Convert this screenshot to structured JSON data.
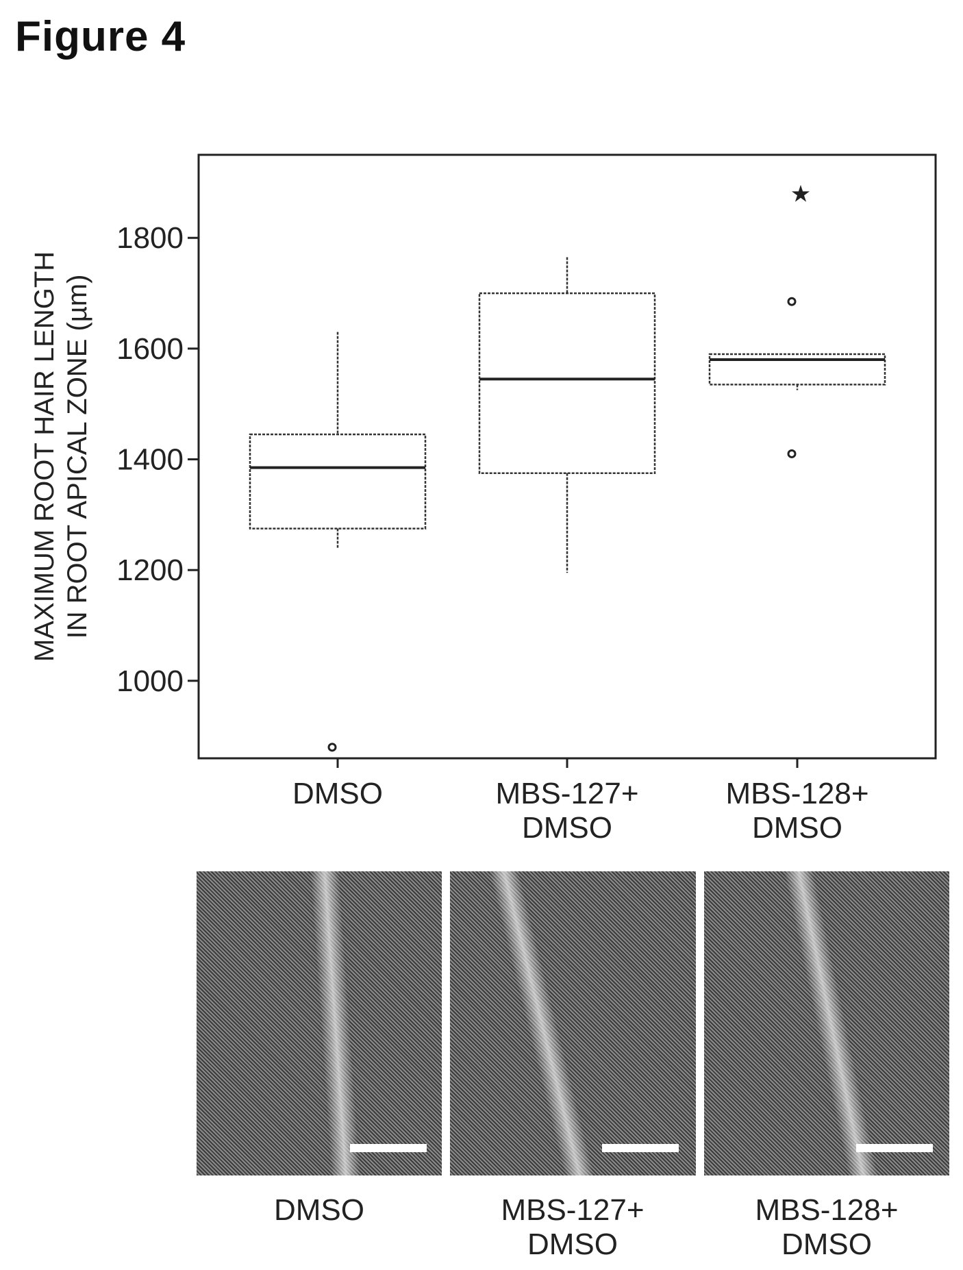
{
  "figure": {
    "title": "Figure 4"
  },
  "chart_data": {
    "type": "box",
    "ylabel_lines": [
      "MAXIMUM ROOT HAIR LENGTH",
      "IN ROOT APICAL ZONE (µm)"
    ],
    "xlabel": "",
    "ylim": [
      860,
      1950
    ],
    "yticks": [
      1000,
      1200,
      1400,
      1600,
      1800
    ],
    "grid": false,
    "categories": [
      {
        "label_lines": [
          "DMSO"
        ]
      },
      {
        "label_lines": [
          "MBS-127+",
          "DMSO"
        ]
      },
      {
        "label_lines": [
          "MBS-128+",
          "DMSO"
        ]
      }
    ],
    "boxes": [
      {
        "whisker_low": 1240,
        "q1": 1275,
        "median": 1385,
        "q3": 1445,
        "whisker_high": 1630,
        "outliers": [
          {
            "value": 880,
            "marker": "circle"
          }
        ]
      },
      {
        "whisker_low": 1195,
        "q1": 1375,
        "median": 1545,
        "q3": 1700,
        "whisker_high": 1765,
        "outliers": []
      },
      {
        "whisker_low": 1525,
        "q1": 1535,
        "median": 1580,
        "q3": 1590,
        "whisker_high": 1590,
        "outliers": [
          {
            "value": 1880,
            "marker": "star"
          },
          {
            "value": 1685,
            "marker": "circle"
          },
          {
            "value": 1410,
            "marker": "circle"
          }
        ]
      }
    ]
  },
  "images": [
    {
      "caption_lines": [
        "DMSO"
      ]
    },
    {
      "caption_lines": [
        "MBS-127+",
        "DMSO"
      ]
    },
    {
      "caption_lines": [
        "MBS-128+",
        "DMSO"
      ]
    }
  ],
  "colors": {
    "ink": "#222222",
    "photo_dark": "#3c3c3c",
    "photo_light": "#8a8a8a"
  }
}
